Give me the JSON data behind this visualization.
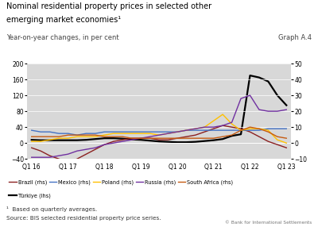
{
  "title_line1": "Nominal residential property prices in selected other",
  "title_line2": "emerging market economies¹",
  "subtitle": "Year-on-year changes, in per cent",
  "graph_label": "Graph A.4",
  "footnote1": "¹  Based on quarterly averages.",
  "footnote2": "Source: BIS selected residential property price series.",
  "footnote3": "© Bank for International Settlements",
  "x_labels": [
    "Q1 16",
    "Q1 17",
    "Q1 18",
    "Q1 19",
    "Q1 20",
    "Q1 21",
    "Q1 22",
    "Q1 23"
  ],
  "x_ticks": [
    0,
    4,
    8,
    12,
    16,
    20,
    24,
    28
  ],
  "lhs_ylim": [
    -40,
    200
  ],
  "rhs_ylim": [
    -10,
    50
  ],
  "lhs_yticks": [
    -40,
    0,
    40,
    80,
    120,
    160,
    200
  ],
  "rhs_yticks": [
    -10,
    0,
    10,
    20,
    30,
    40,
    50
  ],
  "background_color": "#d8d8d8",
  "series": {
    "Brazil": {
      "color": "#8b2020",
      "axis": "rhs",
      "linewidth": 1.0,
      "data_x": [
        0,
        1,
        2,
        3,
        4,
        5,
        6,
        7,
        8,
        9,
        10,
        11,
        12,
        13,
        14,
        15,
        16,
        17,
        18,
        19,
        20,
        21,
        22,
        23,
        24,
        25,
        26,
        27,
        28
      ],
      "data_y": [
        -3,
        -5,
        -8,
        -10,
        -12,
        -10,
        -7,
        -4,
        -1,
        1,
        2,
        3,
        3,
        3,
        2,
        2,
        3,
        4,
        5,
        7,
        9,
        11,
        10,
        9,
        7,
        4,
        1,
        -1,
        -3
      ]
    },
    "Mexico": {
      "color": "#4472c4",
      "axis": "rhs",
      "linewidth": 1.0,
      "data_x": [
        0,
        1,
        2,
        3,
        4,
        5,
        6,
        7,
        8,
        9,
        10,
        11,
        12,
        13,
        14,
        15,
        16,
        17,
        18,
        19,
        20,
        21,
        22,
        23,
        24,
        25,
        26,
        27,
        28
      ],
      "data_y": [
        8,
        7,
        7,
        6,
        6,
        5,
        6,
        6,
        7,
        7,
        7,
        7,
        7,
        7,
        7,
        7,
        7,
        8,
        8,
        8,
        8,
        8,
        8,
        8,
        8,
        8,
        9,
        9,
        9
      ]
    },
    "Poland": {
      "color": "#ffc000",
      "axis": "rhs",
      "linewidth": 1.0,
      "data_x": [
        0,
        1,
        2,
        3,
        4,
        5,
        6,
        7,
        8,
        9,
        10,
        11,
        12,
        13,
        14,
        15,
        16,
        17,
        18,
        19,
        20,
        21,
        22,
        23,
        24,
        25,
        26,
        27,
        28
      ],
      "data_y": [
        1,
        1,
        2,
        3,
        3,
        4,
        4,
        4,
        5,
        6,
        6,
        6,
        6,
        6,
        5,
        6,
        7,
        8,
        9,
        10,
        14,
        18,
        12,
        8,
        9,
        9,
        8,
        2,
        0
      ]
    },
    "Russia": {
      "color": "#7030a0",
      "axis": "rhs",
      "linewidth": 1.0,
      "data_x": [
        0,
        1,
        2,
        3,
        4,
        5,
        6,
        7,
        8,
        9,
        10,
        11,
        12,
        13,
        14,
        15,
        16,
        17,
        18,
        19,
        20,
        21,
        22,
        23,
        24,
        25,
        26,
        27,
        28
      ],
      "data_y": [
        -9,
        -9,
        -9,
        -8,
        -7,
        -5,
        -4,
        -3,
        -1,
        0,
        1,
        2,
        3,
        4,
        5,
        6,
        7,
        8,
        9,
        10,
        10,
        11,
        13,
        28,
        30,
        21,
        20,
        20,
        21
      ]
    },
    "South Africa": {
      "color": "#c55a11",
      "axis": "rhs",
      "linewidth": 1.0,
      "data_x": [
        0,
        1,
        2,
        3,
        4,
        5,
        6,
        7,
        8,
        9,
        10,
        11,
        12,
        13,
        14,
        15,
        16,
        17,
        18,
        19,
        20,
        21,
        22,
        23,
        24,
        25,
        26,
        27,
        28
      ],
      "data_y": [
        4,
        4,
        4,
        4,
        5,
        5,
        5,
        5,
        4,
        4,
        4,
        3,
        3,
        3,
        3,
        3,
        3,
        3,
        3,
        3,
        3,
        4,
        5,
        8,
        10,
        9,
        7,
        4,
        3
      ]
    },
    "Turkiye": {
      "color": "#000000",
      "axis": "lhs",
      "linewidth": 1.6,
      "data_x": [
        0,
        1,
        2,
        3,
        4,
        5,
        6,
        7,
        8,
        9,
        10,
        11,
        12,
        13,
        14,
        15,
        16,
        17,
        18,
        19,
        20,
        21,
        22,
        23,
        24,
        25,
        26,
        27,
        28
      ],
      "data_y": [
        8,
        7,
        7,
        7,
        7,
        7,
        8,
        10,
        12,
        12,
        11,
        9,
        8,
        6,
        4,
        3,
        2,
        2,
        3,
        5,
        7,
        10,
        18,
        22,
        170,
        165,
        155,
        120,
        95
      ]
    }
  }
}
